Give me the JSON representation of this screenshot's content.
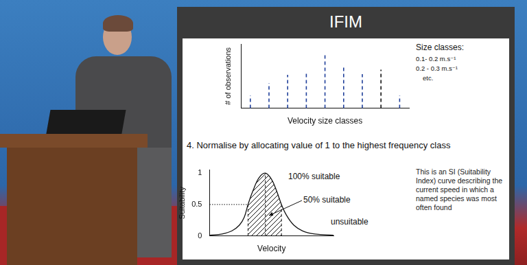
{
  "slide": {
    "title": "IFIM",
    "instruction": "4. Normalise by allocating value of 1 to the highest frequency class",
    "note": "This is an SI (Suitability Index) curve describing the current speed in which a named species was most often found"
  },
  "chart_data": [
    {
      "type": "bar",
      "x_label": "Velocity size classes",
      "y_label": "# of observations",
      "categories": [
        null,
        null,
        null,
        null,
        null,
        null,
        null,
        null,
        null
      ],
      "values": [
        20,
        39,
        52,
        55,
        84,
        66,
        53,
        60,
        20
      ],
      "colors": [
        "#1f3f9a",
        "#1f3f9a",
        "#1f3f9a",
        "#1f3f9a",
        "#1f3f9a",
        "#1f3f9a",
        "#1f3f9a",
        "#111111",
        "#1f3f9a"
      ],
      "line_style": "dashed",
      "ylim": [
        0,
        100
      ],
      "grid": false,
      "tick_labels": false,
      "annotations": [
        "Size classes:",
        "0.1- 0.2 m.s⁻¹",
        "0.2 - 0.3 m.s⁻¹",
        "etc."
      ]
    },
    {
      "type": "line",
      "x_label": "Velocity",
      "y_label": "Suitability",
      "x": [
        0,
        1,
        1.8,
        2.4,
        2.8,
        3.1,
        3.5,
        4,
        4.5,
        5,
        5.4,
        5.8,
        6.2,
        6.8,
        7.5,
        8.5,
        10
      ],
      "values": [
        0.01,
        0.03,
        0.08,
        0.17,
        0.3,
        0.5,
        0.72,
        0.93,
        1.0,
        0.9,
        0.72,
        0.5,
        0.33,
        0.17,
        0.08,
        0.03,
        0.01
      ],
      "color": "#111111",
      "xlim": [
        0,
        10
      ],
      "ylim": [
        0,
        1.05
      ],
      "yticks": [
        0,
        0.5,
        1
      ],
      "grid": false,
      "tick_labels": "y",
      "hatched_x": [
        3.1,
        5.8
      ],
      "dashed_x": [
        3.1,
        4.5,
        5.8
      ],
      "dotted_y": 0.5,
      "annotations": [
        "100% suitable",
        "50% suitable",
        "unsuitable"
      ]
    }
  ]
}
